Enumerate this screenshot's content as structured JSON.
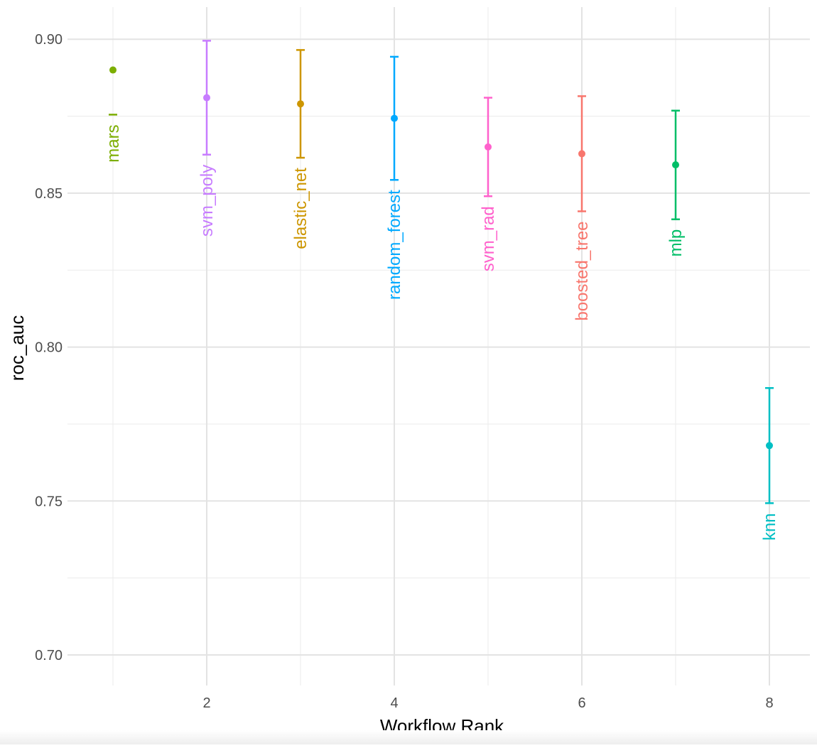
{
  "chart_data": {
    "type": "scatter",
    "title": "",
    "xlabel": "Workflow Rank",
    "ylabel": "roc_auc",
    "xlim": [
      0.5,
      8.4
    ],
    "ylim": [
      0.69,
      0.91
    ],
    "x_ticks": [
      2,
      4,
      6,
      8
    ],
    "x_tick_labels": [
      "2",
      "4",
      "6",
      "8"
    ],
    "y_ticks": [
      0.7,
      0.75,
      0.8,
      0.85,
      0.9
    ],
    "y_tick_labels": [
      "0.70",
      "0.75",
      "0.80",
      "0.85",
      "0.90"
    ],
    "grid": true,
    "legend": "none",
    "error_bars": true,
    "points": [
      {
        "rank": 1,
        "label": "mars",
        "mean": 0.89,
        "lower": 0.8755,
        "upper": 0.8755,
        "color": "#7CAE00"
      },
      {
        "rank": 2,
        "label": "svm_poly",
        "mean": 0.881,
        "lower": 0.8625,
        "upper": 0.8995,
        "color": "#C77CFF"
      },
      {
        "rank": 3,
        "label": "elastic_net",
        "mean": 0.879,
        "lower": 0.8615,
        "upper": 0.8965,
        "color": "#CD9600"
      },
      {
        "rank": 4,
        "label": "random_forest",
        "mean": 0.8743,
        "lower": 0.8543,
        "upper": 0.8943,
        "color": "#00A9FF"
      },
      {
        "rank": 5,
        "label": "svm_rad",
        "mean": 0.865,
        "lower": 0.849,
        "upper": 0.881,
        "color": "#FF61CC"
      },
      {
        "rank": 6,
        "label": "boosted_tree",
        "mean": 0.8628,
        "lower": 0.8441,
        "upper": 0.8815,
        "color": "#F8766D"
      },
      {
        "rank": 7,
        "label": "mlp",
        "mean": 0.8592,
        "lower": 0.8415,
        "upper": 0.8768,
        "color": "#00BE67"
      },
      {
        "rank": 8,
        "label": "knn",
        "mean": 0.768,
        "lower": 0.7493,
        "upper": 0.7867,
        "color": "#00BFC4"
      }
    ]
  }
}
